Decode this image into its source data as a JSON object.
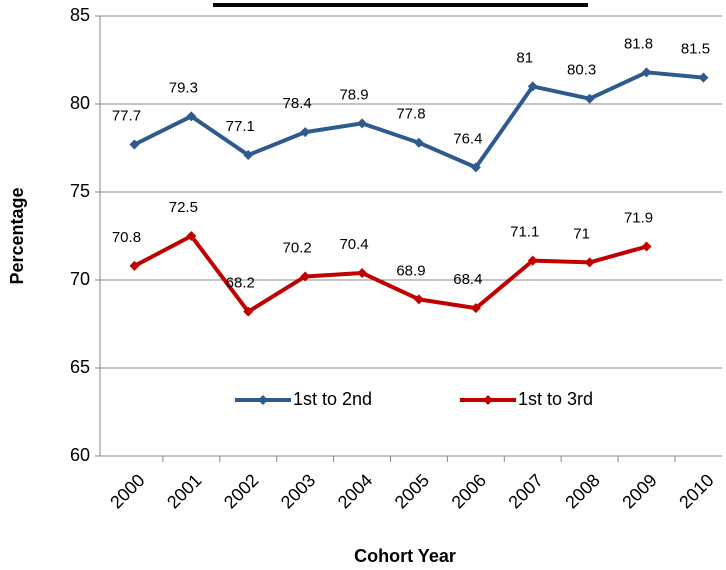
{
  "chart_data": {
    "type": "line",
    "x_label": "Cohort Year",
    "y_label": "Percentage",
    "categories": [
      "2000",
      "2001",
      "2002",
      "2003",
      "2004",
      "2005",
      "2006",
      "2007",
      "2008",
      "2009",
      "2010"
    ],
    "series": [
      {
        "name": "1st to 2nd",
        "color": "#2e5a8e",
        "values": [
          77.7,
          79.3,
          77.1,
          78.4,
          78.9,
          77.8,
          76.4,
          81,
          80.3,
          81.8,
          81.5
        ]
      },
      {
        "name": "1st to 3rd",
        "color": "#c00000",
        "values": [
          70.8,
          72.5,
          68.2,
          70.2,
          70.4,
          68.9,
          68.4,
          71.1,
          71,
          71.9,
          null
        ]
      }
    ],
    "ylim": [
      60,
      85
    ],
    "yticks": [
      60,
      65,
      70,
      75,
      80,
      85
    ],
    "grid": true,
    "legend": "inside-bottom"
  }
}
